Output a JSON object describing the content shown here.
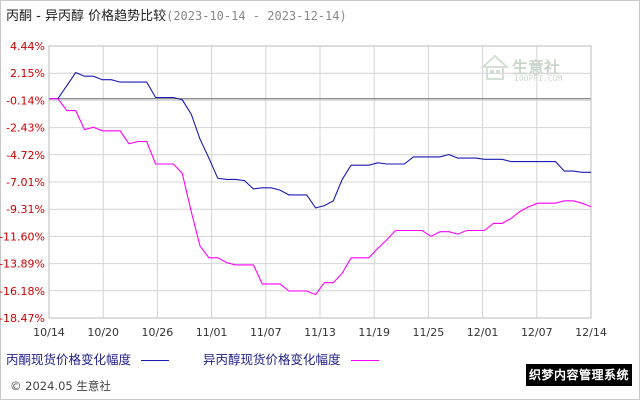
{
  "header": {
    "title": "丙酮 - 异丙醇 价格趋势比较",
    "date_range": "(2023-10-14 - 2023-12-14)"
  },
  "chart_data": {
    "type": "line",
    "yticks": [
      "4.44%",
      "2.15%",
      "-0.14%",
      "-2.43%",
      "-4.72%",
      "-7.01%",
      "-9.31%",
      "-11.60%",
      "-13.89%",
      "-16.18%",
      "-18.47%"
    ],
    "ylim": [
      -18.47,
      4.44
    ],
    "xticks": [
      "10/14",
      "10/20",
      "10/26",
      "11/01",
      "11/07",
      "11/13",
      "11/19",
      "11/25",
      "12/01",
      "12/07",
      "12/14"
    ],
    "x": [
      "10/14",
      "10/15",
      "10/16",
      "10/17",
      "10/18",
      "10/19",
      "10/20",
      "10/21",
      "10/22",
      "10/23",
      "10/24",
      "10/25",
      "10/26",
      "10/27",
      "10/28",
      "10/29",
      "10/30",
      "10/31",
      "11/01",
      "11/02",
      "11/03",
      "11/04",
      "11/05",
      "11/06",
      "11/07",
      "11/08",
      "11/09",
      "11/10",
      "11/11",
      "11/12",
      "11/13",
      "11/14",
      "11/15",
      "11/16",
      "11/17",
      "11/18",
      "11/19",
      "11/20",
      "11/21",
      "11/22",
      "11/23",
      "11/24",
      "11/25",
      "11/26",
      "11/27",
      "11/28",
      "11/29",
      "11/30",
      "12/01",
      "12/02",
      "12/03",
      "12/04",
      "12/05",
      "12/06",
      "12/07",
      "12/08",
      "12/09",
      "12/10",
      "12/11",
      "12/12",
      "12/13",
      "12/14"
    ],
    "series": [
      {
        "name": "丙酮现货价格变化幅度",
        "color": "#1a1ab4",
        "values": [
          0.0,
          0.0,
          1.1,
          2.2,
          1.9,
          1.9,
          1.6,
          1.6,
          1.4,
          1.4,
          1.4,
          1.4,
          0.1,
          0.1,
          0.1,
          -0.1,
          -1.3,
          -3.4,
          -5.0,
          -6.7,
          -6.8,
          -6.8,
          -6.9,
          -7.6,
          -7.5,
          -7.5,
          -7.7,
          -8.1,
          -8.1,
          -8.1,
          -9.2,
          -9.0,
          -8.6,
          -6.8,
          -5.6,
          -5.6,
          -5.6,
          -5.4,
          -5.5,
          -5.5,
          -5.5,
          -4.9,
          -4.9,
          -4.9,
          -4.9,
          -4.7,
          -5.0,
          -5.0,
          -5.0,
          -5.1,
          -5.1,
          -5.1,
          -5.3,
          -5.3,
          -5.3,
          -5.3,
          -5.3,
          -5.3,
          -6.1,
          -6.1,
          -6.2,
          -6.2
        ]
      },
      {
        "name": "异丙醇现货价格变化幅度",
        "color": "#ff00ff",
        "values": [
          0.0,
          0.0,
          -1.0,
          -1.0,
          -2.6,
          -2.4,
          -2.7,
          -2.7,
          -2.7,
          -3.8,
          -3.6,
          -3.6,
          -5.5,
          -5.5,
          -5.5,
          -6.3,
          -9.5,
          -12.4,
          -13.4,
          -13.4,
          -13.8,
          -14.0,
          -14.0,
          -14.0,
          -15.6,
          -15.6,
          -15.6,
          -16.2,
          -16.2,
          -16.2,
          -16.5,
          -15.5,
          -15.5,
          -14.7,
          -13.4,
          -13.4,
          -13.4,
          -12.6,
          -11.9,
          -11.1,
          -11.1,
          -11.1,
          -11.1,
          -11.6,
          -11.2,
          -11.2,
          -11.4,
          -11.1,
          -11.1,
          -11.1,
          -10.5,
          -10.5,
          -10.1,
          -9.5,
          -9.1,
          -8.8,
          -8.8,
          -8.8,
          -8.6,
          -8.6,
          -8.8,
          -9.1
        ]
      }
    ],
    "grid": true
  },
  "legend": {
    "acetone_label": "丙酮现货价格变化幅度",
    "ipa_label": "异丙醇现货价格变化幅度"
  },
  "watermark": {
    "brand": "生意社",
    "site": "100PPI.COM"
  },
  "footer": {
    "copyright": "© 2024.05 生意社"
  },
  "badge": {
    "text": "织梦内容管理系统"
  }
}
